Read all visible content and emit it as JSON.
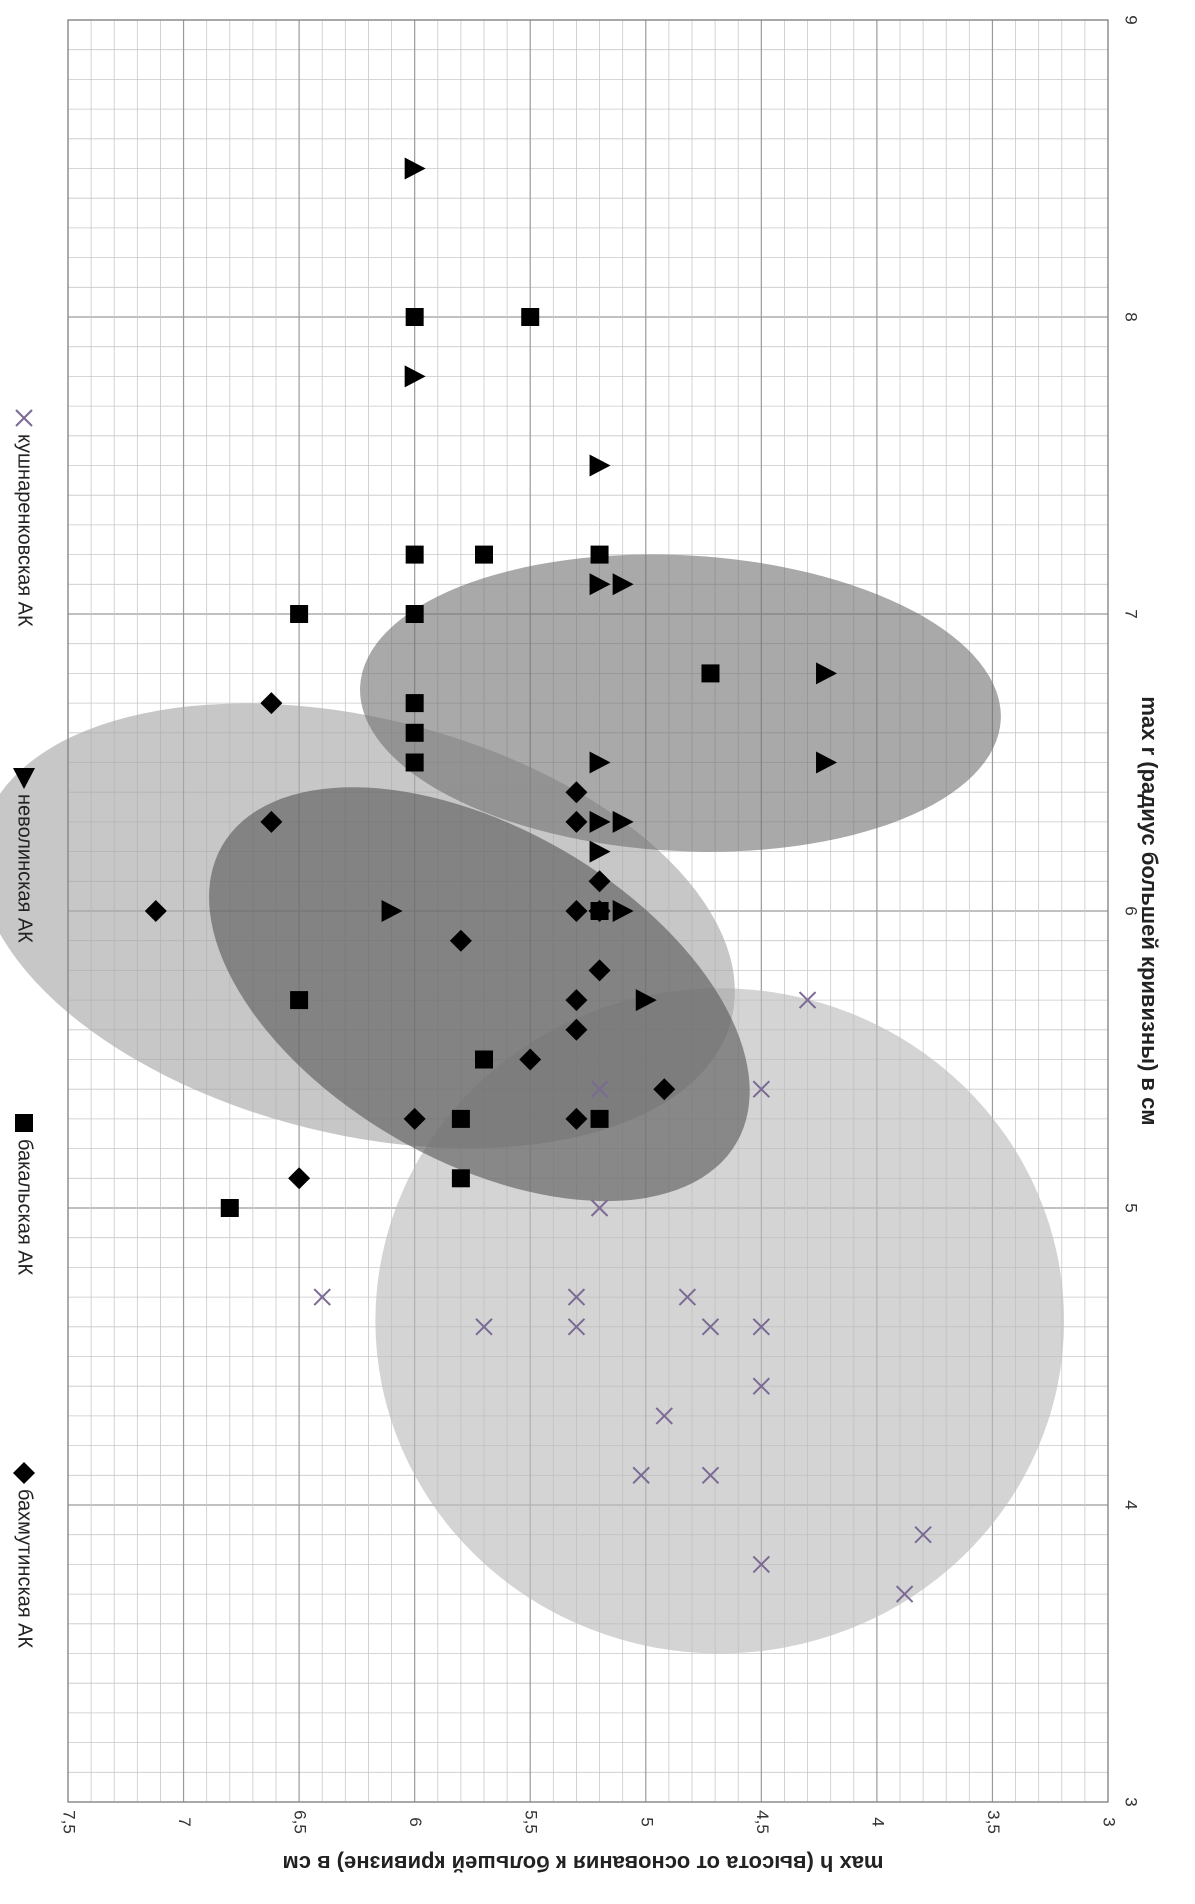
{
  "chart_data": {
    "type": "scatter",
    "orientation": "rotated 90° clockwise",
    "xlabel": "max r (радиус большей кривизны) в см",
    "ylabel": "max h (высота от основания к большей кривизне) в см",
    "xlim": [
      3,
      9
    ],
    "ylim": [
      3,
      7.5
    ],
    "x_ticks": [
      "3",
      "4",
      "5",
      "6",
      "7",
      "8",
      "9"
    ],
    "y_ticks": [
      "3",
      "3,5",
      "4",
      "4,5",
      "5",
      "5,5",
      "6",
      "6,5",
      "7",
      "7,5"
    ],
    "grid": true,
    "legend_position": "top",
    "series": [
      {
        "name": "бахмутинская АК",
        "marker": "diamond",
        "color": "#000000",
        "points": [
          [
            6.0,
            7.12
          ],
          [
            6.7,
            6.62
          ],
          [
            6.3,
            6.62
          ],
          [
            5.9,
            5.8
          ],
          [
            5.1,
            6.5
          ],
          [
            5.3,
            6.0
          ],
          [
            5.5,
            5.5
          ],
          [
            5.4,
            4.92
          ],
          [
            6.4,
            5.3
          ],
          [
            6.3,
            5.3
          ],
          [
            6.1,
            5.2
          ],
          [
            6.0,
            5.3
          ],
          [
            5.8,
            5.2
          ],
          [
            5.7,
            5.3
          ],
          [
            5.6,
            5.3
          ],
          [
            5.3,
            5.3
          ],
          [
            6.0,
            5.2
          ]
        ]
      },
      {
        "name": "бакальская АК",
        "marker": "square",
        "color": "#000000",
        "points": [
          [
            8.0,
            6.0
          ],
          [
            8.0,
            5.5
          ],
          [
            7.2,
            6.0
          ],
          [
            7.2,
            5.7
          ],
          [
            7.2,
            5.2
          ],
          [
            7.0,
            6.5
          ],
          [
            7.0,
            6.0
          ],
          [
            6.8,
            4.72
          ],
          [
            6.7,
            6.0
          ],
          [
            6.6,
            6.0
          ],
          [
            6.5,
            6.0
          ],
          [
            6.0,
            5.2
          ],
          [
            5.7,
            6.5
          ],
          [
            5.5,
            5.7
          ],
          [
            5.3,
            5.8
          ],
          [
            5.3,
            5.2
          ],
          [
            5.1,
            5.8
          ],
          [
            5.0,
            6.8
          ]
        ]
      },
      {
        "name": "неволинская АК",
        "marker": "triangle",
        "color": "#000000",
        "points": [
          [
            8.5,
            6.0
          ],
          [
            7.8,
            6.0
          ],
          [
            7.5,
            5.2
          ],
          [
            7.1,
            5.2
          ],
          [
            7.1,
            5.1
          ],
          [
            6.8,
            4.22
          ],
          [
            6.5,
            4.22
          ],
          [
            6.5,
            5.2
          ],
          [
            6.3,
            5.2
          ],
          [
            6.3,
            5.1
          ],
          [
            6.2,
            5.2
          ],
          [
            6.0,
            6.1
          ],
          [
            6.0,
            5.1
          ],
          [
            5.7,
            5.0
          ]
        ]
      },
      {
        "name": "кушнаренковская АК",
        "marker": "x",
        "color": "#7a6a94",
        "points": [
          [
            5.7,
            4.3
          ],
          [
            5.4,
            4.5
          ],
          [
            5.4,
            5.2
          ],
          [
            5.0,
            5.2
          ],
          [
            4.7,
            6.4
          ],
          [
            4.7,
            5.3
          ],
          [
            4.7,
            4.82
          ],
          [
            4.6,
            5.7
          ],
          [
            4.6,
            5.3
          ],
          [
            4.6,
            4.72
          ],
          [
            4.6,
            4.5
          ],
          [
            4.4,
            4.5
          ],
          [
            4.3,
            4.92
          ],
          [
            4.1,
            5.02
          ],
          [
            4.1,
            4.72
          ],
          [
            3.9,
            3.8
          ],
          [
            3.8,
            4.5
          ],
          [
            3.7,
            3.88
          ]
        ]
      }
    ],
    "ellipses": [
      {
        "cx": 4.62,
        "cy": 4.68,
        "rx": 1.12,
        "ry": 1.49,
        "rotate": 0,
        "fill": "#bdbdbd",
        "opacity": 0.65
      },
      {
        "cx": 5.95,
        "cy": 6.25,
        "rx": 1.3,
        "ry": 0.9,
        "rotate": -76,
        "fill": "#a9a9a9",
        "opacity": 0.65
      },
      {
        "cx": 5.72,
        "cy": 5.72,
        "rx": 1.0,
        "ry": 0.72,
        "rotate": -60,
        "fill": "#555555",
        "opacity": 0.6
      },
      {
        "cx": 6.7,
        "cy": 4.85,
        "rx": 1.08,
        "ry": 0.64,
        "rotate": -87,
        "fill": "#707070",
        "opacity": 0.6
      }
    ]
  }
}
